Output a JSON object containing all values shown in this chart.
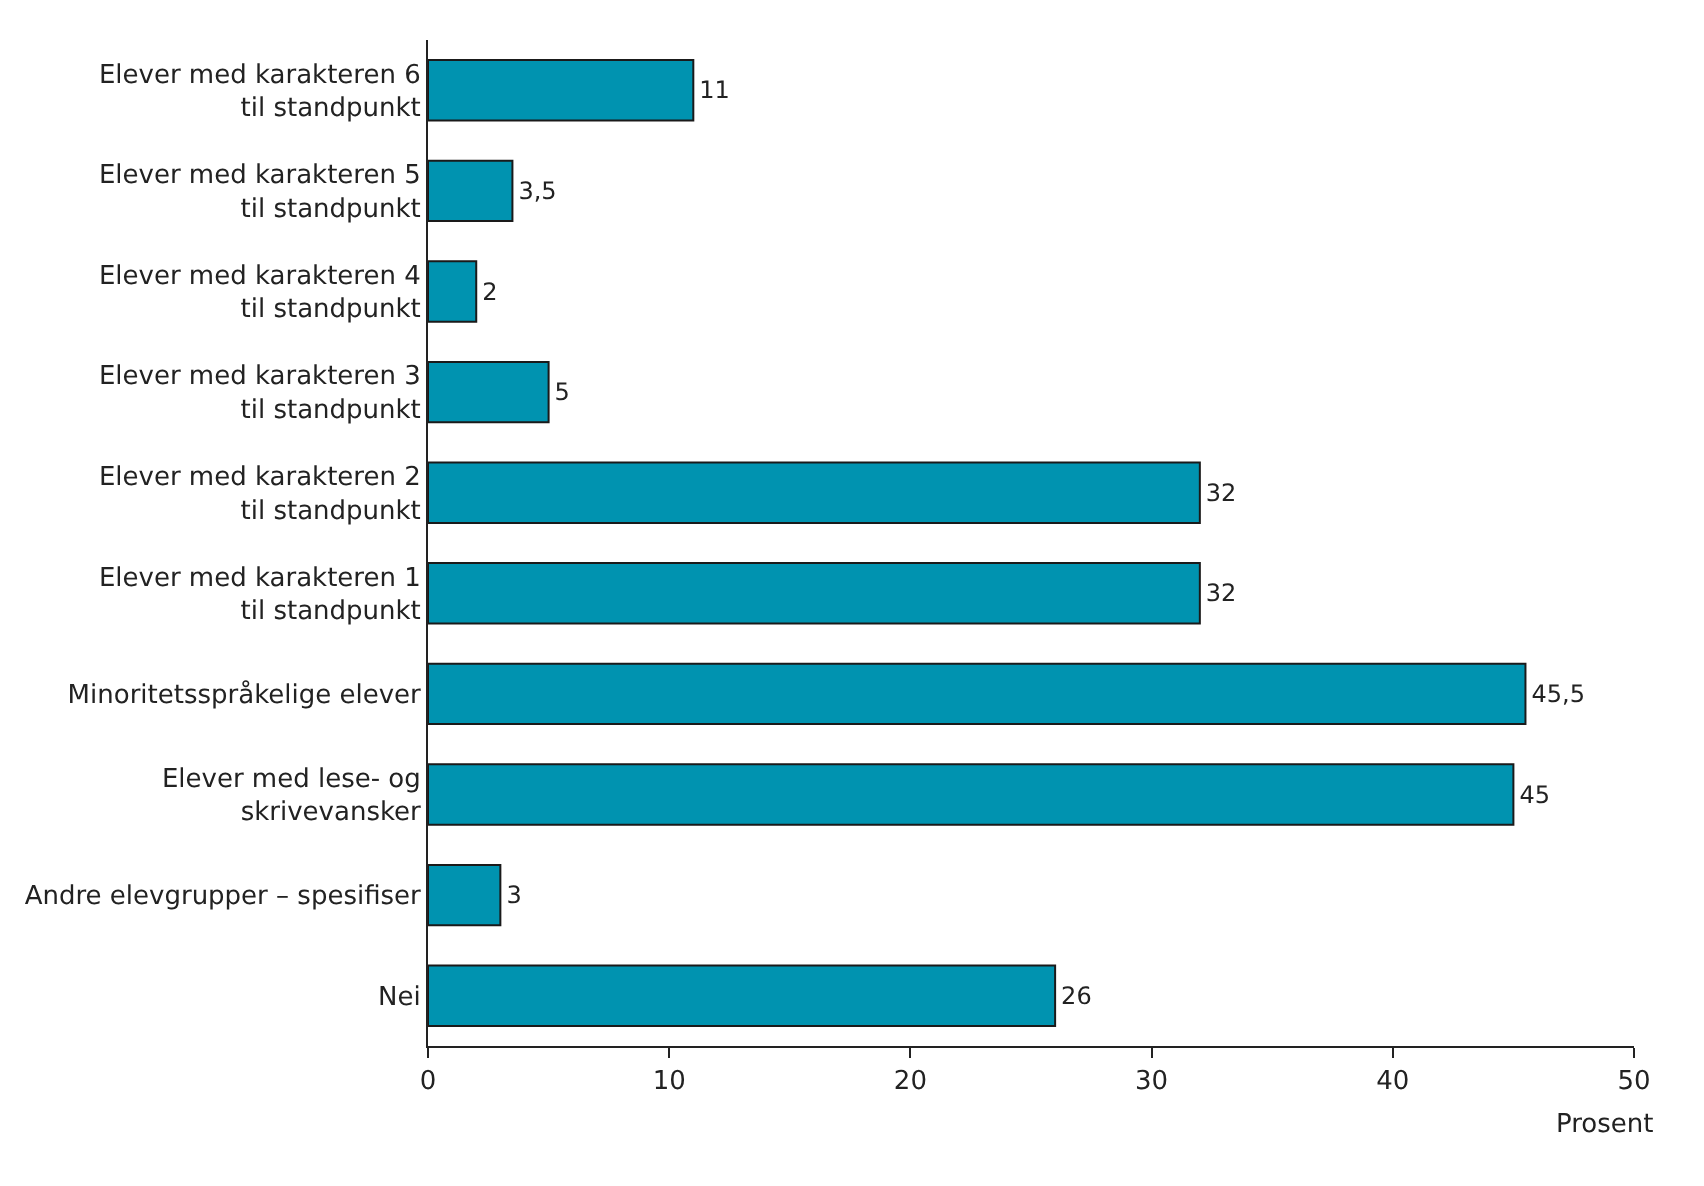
{
  "chart_data": {
    "type": "bar",
    "orientation": "horizontal",
    "categories": [
      "Elever med karakteren 6\ntil standpunkt",
      "Elever med karakteren 5\ntil standpunkt",
      "Elever med karakteren 4\ntil standpunkt",
      "Elever med karakteren 3\ntil standpunkt",
      "Elever med karakteren 2\ntil standpunkt",
      "Elever med karakteren 1\ntil standpunkt",
      "Minoritetsspråkelige elever",
      "Elever med lese- og\nskrivevansker",
      "Andre elevgrupper – spesifiser",
      "Nei"
    ],
    "values": [
      11,
      3.5,
      2,
      5,
      32,
      32,
      45.5,
      45,
      3,
      26
    ],
    "value_labels": [
      "11",
      "3,5",
      "2",
      "5",
      "32",
      "32",
      "45,5",
      "45",
      "3",
      "26"
    ],
    "color": "#0093b0",
    "xlim": [
      0,
      50
    ],
    "xticks": [
      0,
      10,
      20,
      30,
      40,
      50
    ],
    "xlabel": "Prosent",
    "legend": false
  }
}
